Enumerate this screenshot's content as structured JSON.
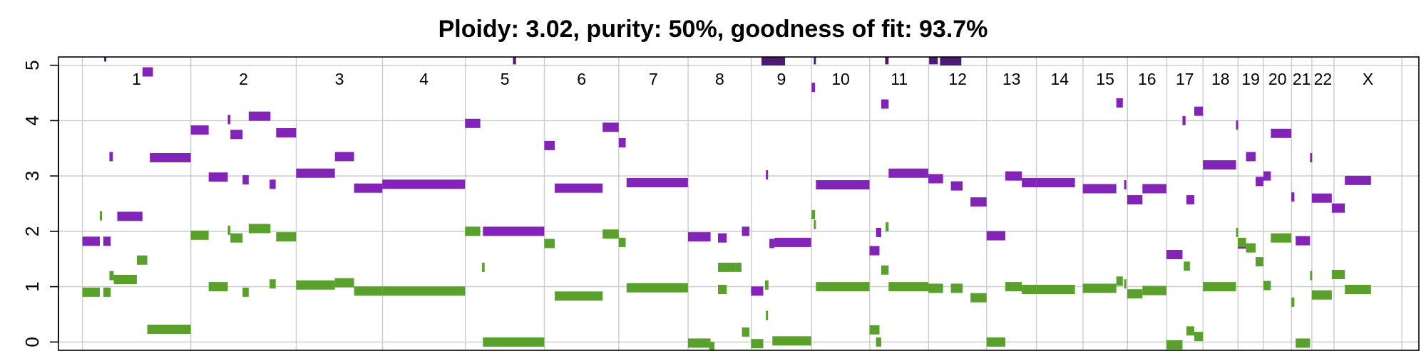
{
  "chart_data": {
    "type": "scatter",
    "title": "Ploidy: 3.02, purity: 50%, goodness of fit: 93.7%",
    "xlabel": "",
    "ylabel": "",
    "ylim": [
      -0.15,
      5.15
    ],
    "y_ticks": [
      "0",
      "1",
      "2",
      "3",
      "4",
      "5"
    ],
    "grid": true,
    "legend": "none",
    "colors": {
      "major": "#8224b8",
      "minor": "#5aa02c",
      "clipped": "#4b1a73",
      "grid": "#cccccc",
      "axis": "#000000"
    },
    "chromosomes": [
      {
        "label": "1",
        "start": 0.0,
        "end": 248.96
      },
      {
        "label": "2",
        "start": 248.96,
        "end": 491.15
      },
      {
        "label": "3",
        "start": 491.15,
        "end": 689.45
      },
      {
        "label": "4",
        "start": 689.45,
        "end": 879.66
      },
      {
        "label": "5",
        "start": 879.66,
        "end": 1061.2
      },
      {
        "label": "6",
        "start": 1061.2,
        "end": 1232.0
      },
      {
        "label": "7",
        "start": 1232.0,
        "end": 1391.4
      },
      {
        "label": "8",
        "start": 1391.4,
        "end": 1536.5
      },
      {
        "label": "9",
        "start": 1536.5,
        "end": 1674.9
      },
      {
        "label": "10",
        "start": 1674.9,
        "end": 1808.7
      },
      {
        "label": "11",
        "start": 1808.7,
        "end": 1943.8
      },
      {
        "label": "12",
        "start": 1943.8,
        "end": 2077.1
      },
      {
        "label": "13",
        "start": 2077.1,
        "end": 2191.5
      },
      {
        "label": "14",
        "start": 2191.5,
        "end": 2298.5
      },
      {
        "label": "15",
        "start": 2298.5,
        "end": 2400.5
      },
      {
        "label": "16",
        "start": 2400.5,
        "end": 2490.8
      },
      {
        "label": "17",
        "start": 2490.8,
        "end": 2574.1
      },
      {
        "label": "18",
        "start": 2574.1,
        "end": 2654.4
      },
      {
        "label": "19",
        "start": 2654.4,
        "end": 2713.0
      },
      {
        "label": "20",
        "start": 2713.0,
        "end": 2777.5
      },
      {
        "label": "21",
        "start": 2777.5,
        "end": 2824.2
      },
      {
        "label": "22",
        "start": 2824.2,
        "end": 2875.0
      },
      {
        "label": "X",
        "start": 2875.0,
        "end": 3031.0
      }
    ],
    "x_range": [
      -55,
      3070
    ],
    "series": [
      {
        "name": "",
        "role": "major",
        "segments": [
          [
            0,
            40,
            1.82
          ],
          [
            48,
            65,
            1.82
          ],
          [
            62,
            70,
            3.35
          ],
          [
            80,
            138,
            2.27
          ],
          [
            138,
            162,
            4.88
          ],
          [
            155,
            249,
            3.33
          ],
          [
            249,
            290,
            3.83
          ],
          [
            290,
            334,
            2.98
          ],
          [
            334,
            340,
            4.02
          ],
          [
            340,
            368,
            3.75
          ],
          [
            368,
            382,
            2.93
          ],
          [
            382,
            432,
            4.08
          ],
          [
            430,
            444,
            2.85
          ],
          [
            445,
            491,
            3.78
          ],
          [
            491,
            580,
            3.05
          ],
          [
            580,
            624,
            3.35
          ],
          [
            624,
            689,
            2.78
          ],
          [
            689,
            879,
            2.85
          ],
          [
            879,
            914,
            3.95
          ],
          [
            920,
            1061,
            2.0
          ],
          [
            1061,
            1085,
            3.55
          ],
          [
            1085,
            1195,
            2.78
          ],
          [
            1195,
            1232,
            3.88
          ],
          [
            1232,
            1248,
            3.6
          ],
          [
            1250,
            1391,
            2.88
          ],
          [
            1391,
            1443,
            1.9
          ],
          [
            1460,
            1480,
            1.88
          ],
          [
            1515,
            1532,
            2.0
          ],
          [
            1536,
            1564,
            0.92
          ],
          [
            1570,
            1574,
            3.02
          ],
          [
            1578,
            1590,
            1.78
          ],
          [
            1590,
            1674,
            1.8
          ],
          [
            1675,
            1683,
            4.6
          ],
          [
            1685,
            1808,
            2.84
          ],
          [
            1808,
            1831,
            1.65
          ],
          [
            1823,
            1835,
            1.98
          ],
          [
            1835,
            1852,
            4.3
          ],
          [
            1852,
            1943,
            3.05
          ],
          [
            1943,
            1977,
            2.95
          ],
          [
            1995,
            2022,
            2.82
          ],
          [
            2040,
            2077,
            2.53
          ],
          [
            2077,
            2120,
            1.92
          ],
          [
            2120,
            2158,
            3.0
          ],
          [
            2158,
            2191,
            2.88
          ],
          [
            2191,
            2280,
            2.88
          ],
          [
            2298,
            2375,
            2.77
          ],
          [
            2375,
            2390,
            4.32
          ],
          [
            2393,
            2398,
            2.84
          ],
          [
            2400,
            2435,
            2.57
          ],
          [
            2435,
            2490,
            2.77
          ],
          [
            2490,
            2527,
            1.58
          ],
          [
            2527,
            2534,
            4.0
          ],
          [
            2536,
            2554,
            2.57
          ],
          [
            2554,
            2574,
            4.17
          ],
          [
            2574,
            2650,
            3.2
          ],
          [
            2650,
            2652,
            3.92
          ],
          [
            2654,
            2673,
            1.77
          ],
          [
            2673,
            2695,
            3.35
          ],
          [
            2695,
            2713,
            2.9
          ],
          [
            2713,
            2730,
            3.0
          ],
          [
            2730,
            2777,
            3.77
          ],
          [
            2777,
            2784,
            2.62
          ],
          [
            2787,
            2820,
            1.83
          ],
          [
            2820,
            2822,
            3.33
          ],
          [
            2824,
            2870,
            2.6
          ],
          [
            2870,
            2900,
            2.42
          ],
          [
            2900,
            2960,
            2.92
          ]
        ]
      },
      {
        "name": "",
        "role": "minor",
        "segments": [
          [
            0,
            40,
            0.9
          ],
          [
            48,
            65,
            0.9
          ],
          [
            40,
            44,
            2.28
          ],
          [
            62,
            72,
            1.2
          ],
          [
            72,
            125,
            1.13
          ],
          [
            125,
            149,
            1.48
          ],
          [
            149,
            249,
            0.23
          ],
          [
            249,
            290,
            1.93
          ],
          [
            290,
            334,
            1.0
          ],
          [
            334,
            340,
            2.02
          ],
          [
            340,
            368,
            1.88
          ],
          [
            368,
            382,
            0.9
          ],
          [
            382,
            432,
            2.05
          ],
          [
            430,
            444,
            1.05
          ],
          [
            445,
            491,
            1.9
          ],
          [
            491,
            580,
            1.03
          ],
          [
            580,
            624,
            1.07
          ],
          [
            624,
            689,
            0.92
          ],
          [
            689,
            879,
            0.92
          ],
          [
            879,
            914,
            2.0
          ],
          [
            918,
            924,
            1.35
          ],
          [
            920,
            1061,
            0.0
          ],
          [
            1061,
            1085,
            1.78
          ],
          [
            1085,
            1195,
            0.83
          ],
          [
            1195,
            1232,
            1.95
          ],
          [
            1232,
            1248,
            1.8
          ],
          [
            1250,
            1391,
            0.98
          ],
          [
            1391,
            1443,
            -0.02
          ],
          [
            1440,
            1452,
            -0.08
          ],
          [
            1460,
            1480,
            0.95
          ],
          [
            1460,
            1500,
            1.35
          ],
          [
            1500,
            1514,
            1.35
          ],
          [
            1515,
            1532,
            0.18
          ],
          [
            1536,
            1564,
            -0.03
          ],
          [
            1568,
            1576,
            1.03
          ],
          [
            1570,
            1574,
            0.48
          ],
          [
            1585,
            1674,
            0.02
          ],
          [
            1675,
            1683,
            2.3
          ],
          [
            1680,
            1683,
            2.12
          ],
          [
            1685,
            1808,
            1.0
          ],
          [
            1808,
            1831,
            0.22
          ],
          [
            1823,
            1835,
            0.0
          ],
          [
            1835,
            1852,
            1.3
          ],
          [
            1845,
            1852,
            2.08
          ],
          [
            1852,
            1943,
            1.0
          ],
          [
            1943,
            1977,
            0.97
          ],
          [
            1995,
            2022,
            0.97
          ],
          [
            2040,
            2077,
            0.8
          ],
          [
            2077,
            2120,
            0.0
          ],
          [
            2120,
            2158,
            1.0
          ],
          [
            2158,
            2191,
            0.95
          ],
          [
            2191,
            2280,
            0.95
          ],
          [
            2298,
            2375,
            0.97
          ],
          [
            2375,
            2390,
            1.1
          ],
          [
            2393,
            2398,
            1.05
          ],
          [
            2400,
            2435,
            0.87
          ],
          [
            2435,
            2490,
            0.93
          ],
          [
            2490,
            2527,
            -0.05
          ],
          [
            2530,
            2544,
            1.37
          ],
          [
            2536,
            2554,
            0.2
          ],
          [
            2554,
            2574,
            0.1
          ],
          [
            2574,
            2650,
            1.0
          ],
          [
            2650,
            2652,
            1.98
          ],
          [
            2654,
            2673,
            1.8
          ],
          [
            2673,
            2695,
            1.7
          ],
          [
            2695,
            2713,
            1.45
          ],
          [
            2713,
            2730,
            1.02
          ],
          [
            2730,
            2777,
            1.88
          ],
          [
            2777,
            2784,
            0.72
          ],
          [
            2787,
            2820,
            -0.02
          ],
          [
            2820,
            2822,
            1.2
          ],
          [
            2824,
            2870,
            0.85
          ],
          [
            2870,
            2900,
            1.22
          ],
          [
            2900,
            2960,
            0.95
          ]
        ]
      },
      {
        "name": "",
        "role": "clipped",
        "segments": [
          [
            50,
            54,
            5.15
          ],
          [
            989,
            996,
            5.1
          ],
          [
            1560,
            1614,
            5.08
          ],
          [
            1680,
            1683,
            5.1
          ],
          [
            1844,
            1852,
            5.1
          ],
          [
            1945,
            1965,
            5.1
          ],
          [
            1970,
            2019,
            5.08
          ]
        ]
      }
    ]
  }
}
